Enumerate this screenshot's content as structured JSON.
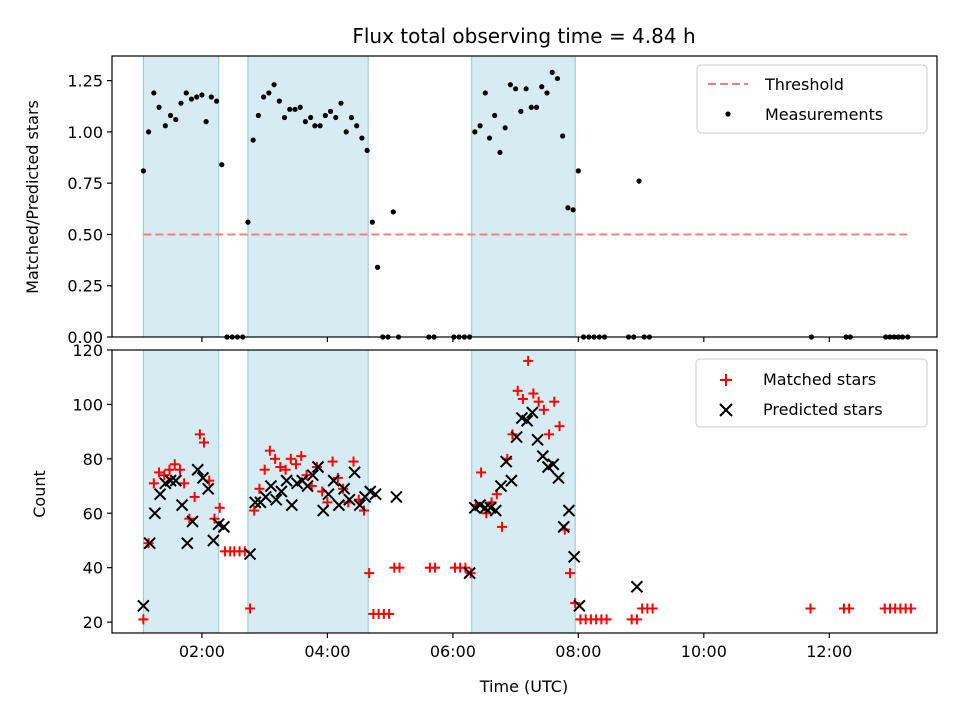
{
  "title": "Flux total observing time = 4.84 h",
  "chart_data": [
    {
      "type": "scatter",
      "ylabel": "Matched/Predicted stars",
      "ylim": [
        0,
        1.37
      ],
      "xlim": [
        "00:34",
        "13:43"
      ],
      "yticks": [
        "0.00",
        "0.25",
        "0.50",
        "0.75",
        "1.00",
        "1.25"
      ],
      "grid": false,
      "legend_position": "top-right",
      "shaded_intervals": [
        [
          "01:04",
          "02:16"
        ],
        [
          "02:44",
          "04:39"
        ],
        [
          "06:18",
          "07:57"
        ]
      ],
      "threshold": {
        "name": "Threshold",
        "y": 0.5,
        "x": [
          "01:04",
          "13:16"
        ],
        "color": "#f08080"
      },
      "series": [
        {
          "name": "Measurements",
          "color": "#000000",
          "points": [
            [
              "01:04",
              0.81
            ],
            [
              "01:09",
              1.0
            ],
            [
              "01:14",
              1.19
            ],
            [
              "01:19",
              1.12
            ],
            [
              "01:25",
              1.03
            ],
            [
              "01:30",
              1.08
            ],
            [
              "01:35",
              1.06
            ],
            [
              "01:40",
              1.14
            ],
            [
              "01:45",
              1.19
            ],
            [
              "01:50",
              1.16
            ],
            [
              "01:55",
              1.17
            ],
            [
              "02:00",
              1.18
            ],
            [
              "02:04",
              1.05
            ],
            [
              "02:09",
              1.17
            ],
            [
              "02:14",
              1.15
            ],
            [
              "02:19",
              0.84
            ],
            [
              "02:24",
              0
            ],
            [
              "02:29",
              0
            ],
            [
              "02:34",
              0
            ],
            [
              "02:39",
              0
            ],
            [
              "02:44",
              0.56
            ],
            [
              "02:49",
              0.96
            ],
            [
              "02:54",
              1.08
            ],
            [
              "02:59",
              1.17
            ],
            [
              "03:04",
              1.19
            ],
            [
              "03:09",
              1.23
            ],
            [
              "03:14",
              1.15
            ],
            [
              "03:19",
              1.07
            ],
            [
              "03:24",
              1.11
            ],
            [
              "03:29",
              1.11
            ],
            [
              "03:34",
              1.12
            ],
            [
              "03:39",
              1.05
            ],
            [
              "03:44",
              1.07
            ],
            [
              "03:48",
              1.03
            ],
            [
              "03:53",
              1.03
            ],
            [
              "03:58",
              1.08
            ],
            [
              "04:03",
              1.1
            ],
            [
              "04:08",
              1.07
            ],
            [
              "04:13",
              1.14
            ],
            [
              "04:18",
              1.0
            ],
            [
              "04:23",
              1.07
            ],
            [
              "04:28",
              1.03
            ],
            [
              "04:33",
              0.97
            ],
            [
              "04:38",
              0.91
            ],
            [
              "04:43",
              0.56
            ],
            [
              "04:48",
              0.34
            ],
            [
              "04:53",
              0
            ],
            [
              "04:58",
              0
            ],
            [
              "05:03",
              0.61
            ],
            [
              "05:08",
              0
            ],
            [
              "05:37",
              0
            ],
            [
              "05:42",
              0
            ],
            [
              "06:01",
              0
            ],
            [
              "06:06",
              0
            ],
            [
              "06:11",
              0
            ],
            [
              "06:16",
              0
            ],
            [
              "06:21",
              1.0
            ],
            [
              "06:26",
              1.03
            ],
            [
              "06:31",
              1.19
            ],
            [
              "06:35",
              0.97
            ],
            [
              "06:40",
              1.08
            ],
            [
              "06:45",
              0.9
            ],
            [
              "06:50",
              1.02
            ],
            [
              "06:55",
              1.23
            ],
            [
              "07:00",
              1.21
            ],
            [
              "07:05",
              1.1
            ],
            [
              "07:10",
              1.21
            ],
            [
              "07:15",
              1.12
            ],
            [
              "07:20",
              1.12
            ],
            [
              "07:25",
              1.22
            ],
            [
              "07:30",
              1.19
            ],
            [
              "07:35",
              1.29
            ],
            [
              "07:40",
              1.26
            ],
            [
              "07:45",
              0.98
            ],
            [
              "07:50",
              0.63
            ],
            [
              "07:55",
              0.62
            ],
            [
              "08:00",
              0.81
            ],
            [
              "08:05",
              0
            ],
            [
              "08:10",
              0
            ],
            [
              "08:15",
              0
            ],
            [
              "08:20",
              0
            ],
            [
              "08:25",
              0
            ],
            [
              "08:48",
              0
            ],
            [
              "08:53",
              0
            ],
            [
              "08:58",
              0.76
            ],
            [
              "09:03",
              0
            ],
            [
              "09:08",
              0
            ],
            [
              "11:43",
              0
            ],
            [
              "12:16",
              0
            ],
            [
              "12:20",
              0
            ],
            [
              "12:54",
              0
            ],
            [
              "12:58",
              0
            ],
            [
              "13:02",
              0
            ],
            [
              "13:06",
              0
            ],
            [
              "13:10",
              0
            ],
            [
              "13:15",
              0
            ]
          ]
        }
      ]
    },
    {
      "type": "scatter",
      "xlabel": "Time (UTC)",
      "ylabel": "Count",
      "xlim": [
        "00:34",
        "13:43"
      ],
      "ylim": [
        16,
        120
      ],
      "xticks": [
        "02:00",
        "04:00",
        "06:00",
        "08:00",
        "10:00",
        "12:00"
      ],
      "yticks": [
        "20",
        "40",
        "60",
        "80",
        "100",
        "120"
      ],
      "grid": false,
      "legend_position": "top-right",
      "shaded_intervals": [
        [
          "01:04",
          "02:16"
        ],
        [
          "02:44",
          "04:39"
        ],
        [
          "06:18",
          "07:57"
        ]
      ],
      "series": [
        {
          "name": "Matched stars",
          "marker": "plus",
          "color": "#ff0000",
          "points": [
            [
              "01:04",
              21
            ],
            [
              "01:09",
              49
            ],
            [
              "01:14",
              71
            ],
            [
              "01:19",
              75
            ],
            [
              "01:24",
              74
            ],
            [
              "01:29",
              76
            ],
            [
              "01:34",
              78
            ],
            [
              "01:39",
              76
            ],
            [
              "01:43",
              71
            ],
            [
              "01:48",
              58
            ],
            [
              "01:53",
              66
            ],
            [
              "01:58",
              89
            ],
            [
              "02:02",
              86
            ],
            [
              "02:07",
              72
            ],
            [
              "02:12",
              58
            ],
            [
              "02:17",
              62
            ],
            [
              "02:22",
              46
            ],
            [
              "02:27",
              46
            ],
            [
              "02:31",
              46
            ],
            [
              "02:36",
              46
            ],
            [
              "02:41",
              46
            ],
            [
              "02:46",
              25
            ],
            [
              "02:50",
              61
            ],
            [
              "02:55",
              69
            ],
            [
              "03:00",
              76
            ],
            [
              "03:05",
              83
            ],
            [
              "03:10",
              80
            ],
            [
              "03:15",
              77
            ],
            [
              "03:20",
              76
            ],
            [
              "03:25",
              80
            ],
            [
              "03:30",
              78
            ],
            [
              "03:35",
              81
            ],
            [
              "03:40",
              74
            ],
            [
              "03:45",
              70
            ],
            [
              "03:50",
              77
            ],
            [
              "03:55",
              68
            ],
            [
              "04:00",
              64
            ],
            [
              "04:05",
              79
            ],
            [
              "04:10",
              73
            ],
            [
              "04:15",
              69
            ],
            [
              "04:20",
              64
            ],
            [
              "04:25",
              79
            ],
            [
              "04:30",
              65
            ],
            [
              "04:35",
              61
            ],
            [
              "04:40",
              38
            ],
            [
              "04:44",
              23
            ],
            [
              "04:49",
              23
            ],
            [
              "04:54",
              23
            ],
            [
              "04:59",
              23
            ],
            [
              "05:04",
              40
            ],
            [
              "05:09",
              40
            ],
            [
              "05:38",
              40
            ],
            [
              "05:43",
              40
            ],
            [
              "06:02",
              40
            ],
            [
              "06:07",
              40
            ],
            [
              "06:12",
              40
            ],
            [
              "06:17",
              38
            ],
            [
              "06:22",
              63
            ],
            [
              "06:27",
              75
            ],
            [
              "06:32",
              60
            ],
            [
              "06:37",
              64
            ],
            [
              "06:42",
              67
            ],
            [
              "06:47",
              55
            ],
            [
              "06:52",
              80
            ],
            [
              "06:57",
              89
            ],
            [
              "07:02",
              105
            ],
            [
              "07:07",
              102
            ],
            [
              "07:12",
              116
            ],
            [
              "07:17",
              104
            ],
            [
              "07:22",
              101
            ],
            [
              "07:27",
              98
            ],
            [
              "07:32",
              89
            ],
            [
              "07:37",
              101
            ],
            [
              "07:42",
              92
            ],
            [
              "07:47",
              54
            ],
            [
              "07:52",
              38
            ],
            [
              "07:57",
              27
            ],
            [
              "08:02",
              21
            ],
            [
              "08:07",
              21
            ],
            [
              "08:12",
              21
            ],
            [
              "08:17",
              21
            ],
            [
              "08:22",
              21
            ],
            [
              "08:27",
              21
            ],
            [
              "08:51",
              21
            ],
            [
              "08:56",
              21
            ],
            [
              "09:01",
              25
            ],
            [
              "09:06",
              25
            ],
            [
              "09:11",
              25
            ],
            [
              "11:42",
              25
            ],
            [
              "12:14",
              25
            ],
            [
              "12:19",
              25
            ],
            [
              "12:53",
              25
            ],
            [
              "12:58",
              25
            ],
            [
              "13:03",
              25
            ],
            [
              "13:08",
              25
            ],
            [
              "13:13",
              25
            ],
            [
              "13:18",
              25
            ]
          ]
        },
        {
          "name": "Predicted stars",
          "marker": "x",
          "color": "#000000",
          "points": [
            [
              "01:04",
              26
            ],
            [
              "01:10",
              49
            ],
            [
              "01:15",
              60
            ],
            [
              "01:20",
              67
            ],
            [
              "01:25",
              71
            ],
            [
              "01:30",
              72
            ],
            [
              "01:35",
              72
            ],
            [
              "01:41",
              63
            ],
            [
              "01:46",
              49
            ],
            [
              "01:51",
              57
            ],
            [
              "01:56",
              76
            ],
            [
              "02:01",
              73
            ],
            [
              "02:06",
              69
            ],
            [
              "02:11",
              50
            ],
            [
              "02:16",
              56
            ],
            [
              "02:21",
              55
            ],
            [
              "02:46",
              45
            ],
            [
              "02:51",
              64
            ],
            [
              "02:56",
              64
            ],
            [
              "03:01",
              66
            ],
            [
              "03:06",
              70
            ],
            [
              "03:11",
              65
            ],
            [
              "03:16",
              68
            ],
            [
              "03:21",
              72
            ],
            [
              "03:26",
              63
            ],
            [
              "03:31",
              71
            ],
            [
              "03:36",
              72
            ],
            [
              "03:41",
              70
            ],
            [
              "03:46",
              74
            ],
            [
              "03:51",
              77
            ],
            [
              "03:56",
              61
            ],
            [
              "04:01",
              67
            ],
            [
              "04:06",
              72
            ],
            [
              "04:11",
              63
            ],
            [
              "04:16",
              69
            ],
            [
              "04:21",
              65
            ],
            [
              "04:26",
              75
            ],
            [
              "04:31",
              63
            ],
            [
              "04:36",
              66
            ],
            [
              "04:41",
              68
            ],
            [
              "04:46",
              67
            ],
            [
              "05:06",
              66
            ],
            [
              "06:16",
              38
            ],
            [
              "06:21",
              62
            ],
            [
              "06:26",
              63
            ],
            [
              "06:31",
              62
            ],
            [
              "06:36",
              62
            ],
            [
              "06:41",
              61
            ],
            [
              "06:46",
              70
            ],
            [
              "06:51",
              79
            ],
            [
              "06:56",
              72
            ],
            [
              "07:01",
              88
            ],
            [
              "07:06",
              95
            ],
            [
              "07:11",
              94
            ],
            [
              "07:16",
              97
            ],
            [
              "07:21",
              87
            ],
            [
              "07:26",
              81
            ],
            [
              "07:31",
              77
            ],
            [
              "07:36",
              78
            ],
            [
              "07:41",
              73
            ],
            [
              "07:46",
              55
            ],
            [
              "07:51",
              61
            ],
            [
              "07:56",
              44
            ],
            [
              "08:01",
              26
            ],
            [
              "08:56",
              33
            ]
          ]
        }
      ]
    }
  ]
}
